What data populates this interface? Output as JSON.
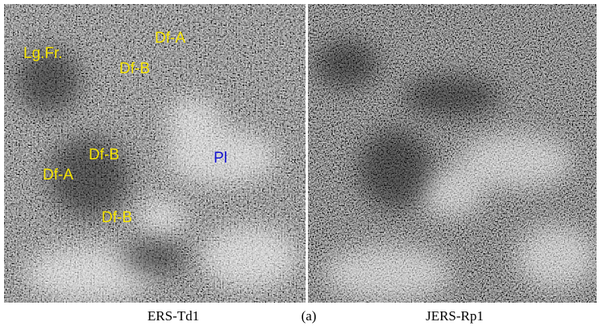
{
  "figure_label": "(a)",
  "panels": [
    {
      "caption": "ERS-Td1",
      "labels": [
        "Lg.Fr.",
        "Df-A",
        "Df-B",
        "Df-B",
        "Df-A",
        "Df-B",
        "Pl"
      ]
    },
    {
      "caption": "JERS-Rp1"
    }
  ]
}
